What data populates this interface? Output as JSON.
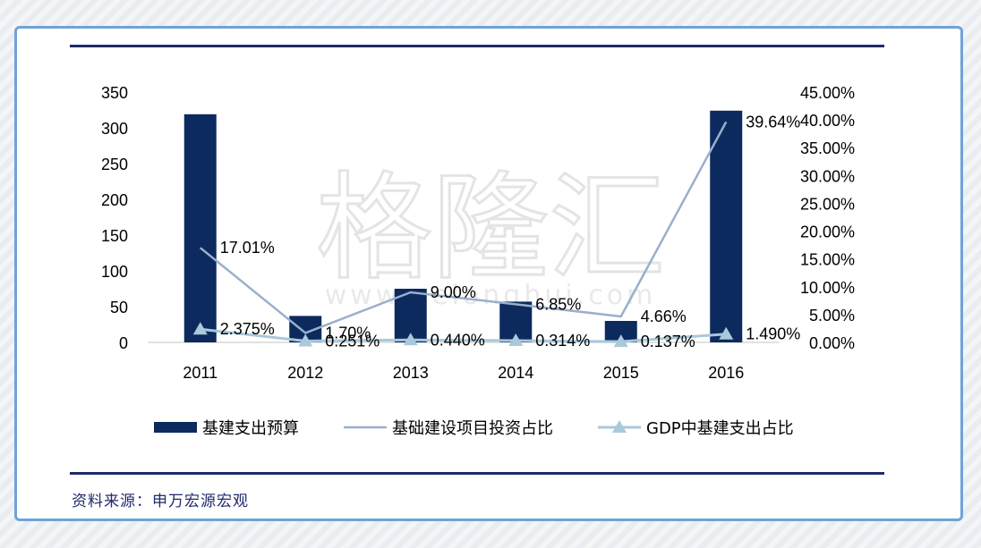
{
  "source_note": "资料来源：申万宏源宏观",
  "watermark": {
    "logo_text": "格隆汇",
    "url_text": "www.gelonghui.com"
  },
  "chart_data": {
    "type": "bar",
    "categories": [
      "2011",
      "2012",
      "2013",
      "2014",
      "2015",
      "2016"
    ],
    "series": [
      {
        "name": "基建支出预算",
        "type": "bar",
        "axis": "left",
        "color": "#0c2a5e",
        "values": [
          319,
          37,
          75,
          57,
          30,
          324
        ]
      },
      {
        "name": "基础建设项目投资占比",
        "type": "line",
        "axis": "right",
        "color": "#9aafcc",
        "values": [
          17.01,
          1.7,
          9.0,
          6.85,
          4.66,
          39.64
        ],
        "labels": [
          "17.01%",
          "1.70%",
          "9.00%",
          "6.85%",
          "4.66%",
          "39.64%"
        ]
      },
      {
        "name": "GDP中基建支出占比",
        "type": "line-marker",
        "axis": "right",
        "color": "#a9c9dc",
        "values": [
          2.375,
          0.251,
          0.44,
          0.314,
          0.137,
          1.49
        ],
        "labels": [
          "2.375%",
          "0.251%",
          "0.440%",
          "0.314%",
          "0.137%",
          "1.490%"
        ]
      }
    ],
    "y_left": {
      "min": 0,
      "max": 350,
      "ticks": [
        "0",
        "50",
        "100",
        "150",
        "200",
        "250",
        "300",
        "350"
      ]
    },
    "y_right": {
      "min": 0,
      "max": 45,
      "ticks": [
        "0.00%",
        "5.00%",
        "10.00%",
        "15.00%",
        "20.00%",
        "25.00%",
        "30.00%",
        "35.00%",
        "40.00%",
        "45.00%"
      ]
    },
    "grid": false,
    "legend_position": "bottom"
  }
}
